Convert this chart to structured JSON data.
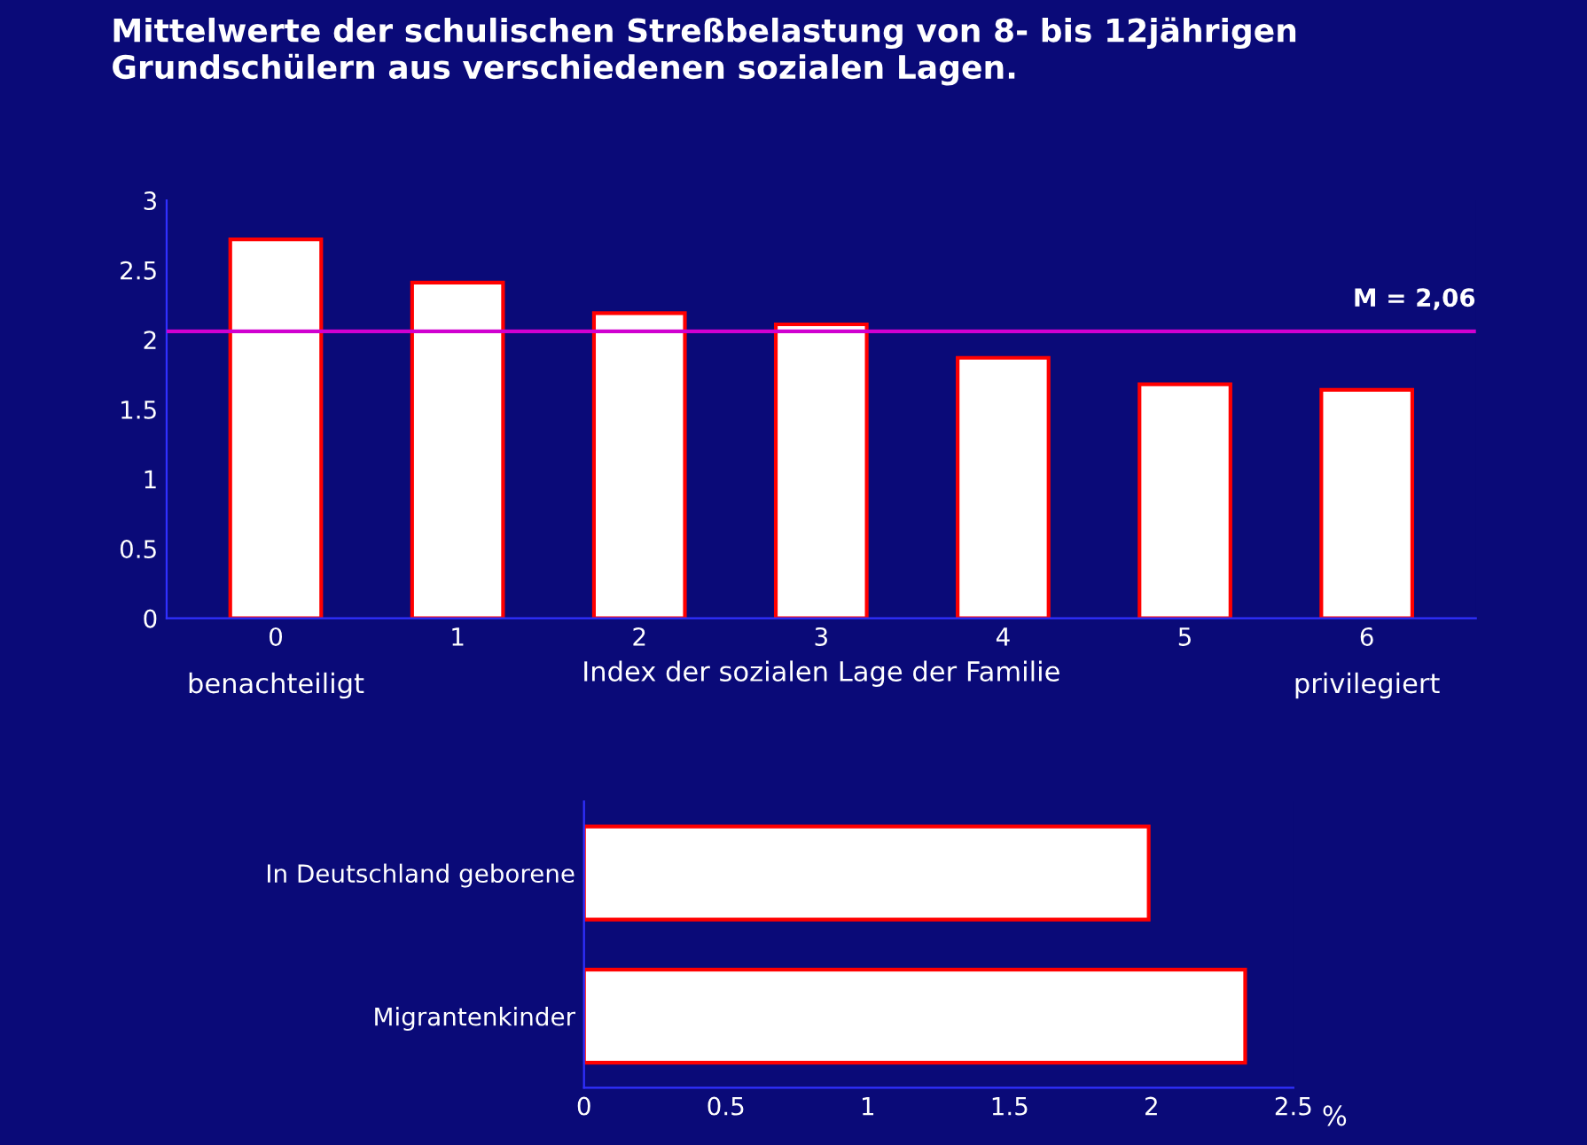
{
  "chart_data": [
    {
      "type": "bar",
      "title": "Mittelwerte der schulischen Streßbelastung von 8- bis 12jährigen\nGrundschülern aus verschiedenen sozialen Lagen.",
      "xlabel": "Index der sozialen Lage der Familie",
      "categories": [
        "0",
        "1",
        "2",
        "3",
        "4",
        "5",
        "6"
      ],
      "values": [
        2.72,
        2.41,
        2.19,
        2.11,
        1.87,
        1.68,
        1.64
      ],
      "color": "#ffffff",
      "ylim": [
        0,
        3
      ],
      "yticks": [
        0,
        0.5,
        1,
        1.5,
        2,
        2.5,
        3
      ],
      "grid": false,
      "ref_lines": [
        {
          "axis": "y",
          "value": 2.06,
          "label": "M = 2,06",
          "color": "#d000d0"
        }
      ],
      "annotations": [
        "benachteiligt",
        "privilegiert"
      ]
    },
    {
      "type": "bar",
      "orientation": "horizontal",
      "xlabel": "%",
      "categories": [
        "In Deutschland geborene",
        "Migrantenkinder"
      ],
      "values": [
        1.99,
        2.33
      ],
      "color": "#ffffff",
      "xlim": [
        0,
        2.5
      ],
      "xticks": [
        0,
        0.5,
        1,
        1.5,
        2,
        2.5
      ],
      "grid": false
    }
  ]
}
